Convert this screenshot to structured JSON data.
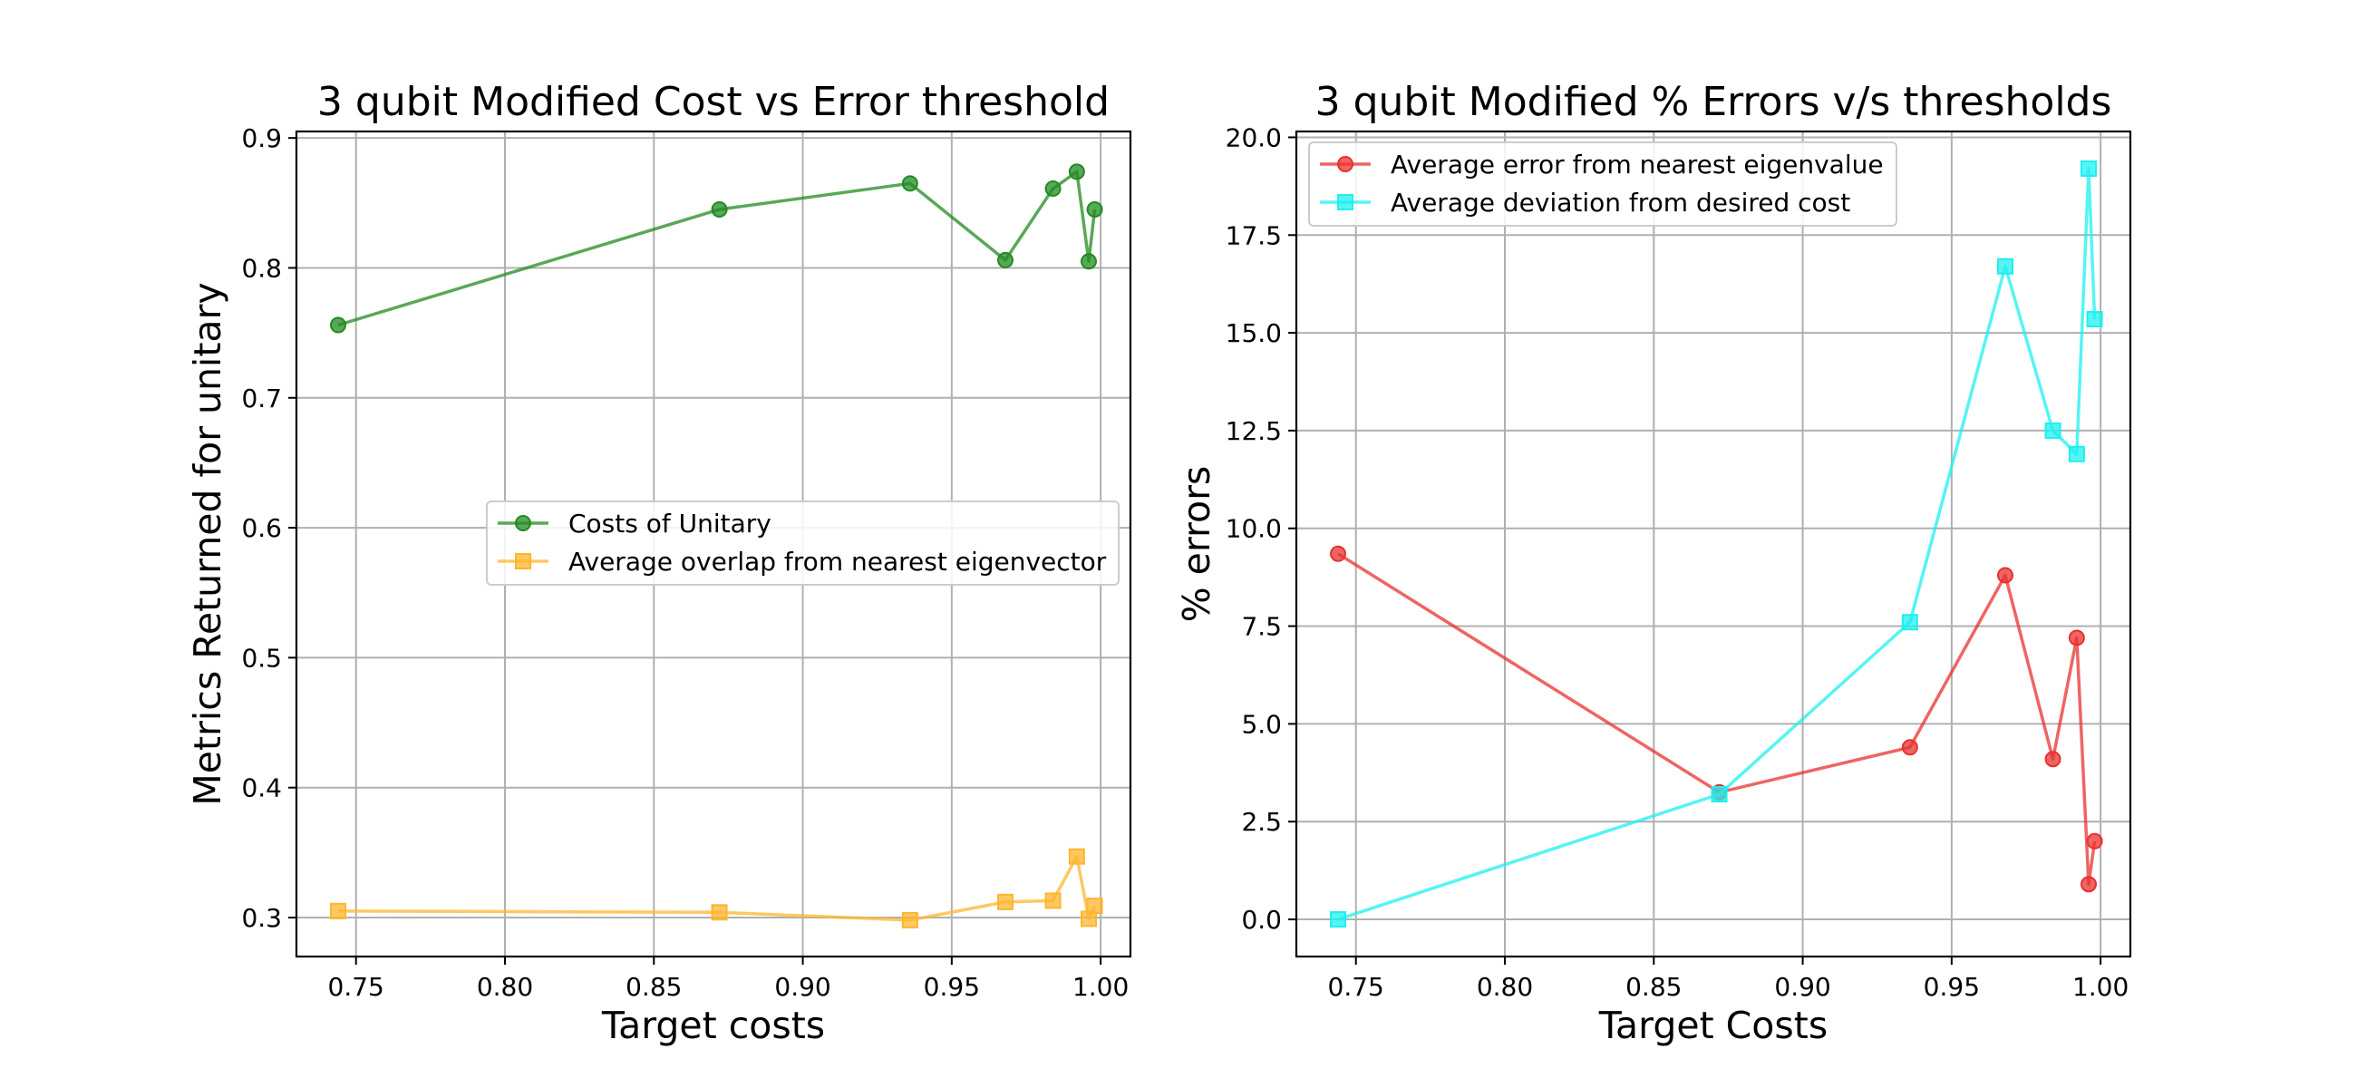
{
  "chart_data": [
    {
      "type": "line",
      "title": "3 qubit Modified Cost vs Error threshold",
      "xlabel": "Target costs",
      "ylabel": "Metrics Returned for unitary",
      "xlim": [
        0.73,
        1.01
      ],
      "ylim": [
        0.27,
        0.905
      ],
      "xticks": [
        0.75,
        0.8,
        0.85,
        0.9,
        0.95,
        1.0
      ],
      "xtick_labels": [
        "0.75",
        "0.80",
        "0.85",
        "0.90",
        "0.95",
        "1.00"
      ],
      "yticks": [
        0.3,
        0.4,
        0.5,
        0.6,
        0.7,
        0.8,
        0.9
      ],
      "ytick_labels": [
        "0.3",
        "0.4",
        "0.5",
        "0.6",
        "0.7",
        "0.8",
        "0.9"
      ],
      "grid": true,
      "legend_position": "center-right",
      "series": [
        {
          "name": "Costs of Unitary",
          "color": "#228B22",
          "marker": "circle",
          "x": [
            0.744,
            0.872,
            0.936,
            0.968,
            0.984,
            0.992,
            0.996,
            0.998
          ],
          "y": [
            0.756,
            0.845,
            0.865,
            0.806,
            0.861,
            0.874,
            0.805,
            0.845
          ]
        },
        {
          "name": "Average overlap from nearest eigenvector",
          "color": "#FFB52E",
          "marker": "square",
          "x": [
            0.744,
            0.872,
            0.936,
            0.968,
            0.984,
            0.992,
            0.996,
            0.998
          ],
          "y": [
            0.305,
            0.304,
            0.298,
            0.312,
            0.313,
            0.347,
            0.299,
            0.309
          ]
        }
      ]
    },
    {
      "type": "line",
      "title": "3 qubit Modified % Errors v/s thresholds",
      "xlabel": "Target Costs",
      "ylabel": "% errors",
      "xlim": [
        0.73,
        1.01
      ],
      "ylim": [
        -0.95,
        20.15
      ],
      "xticks": [
        0.75,
        0.8,
        0.85,
        0.9,
        0.95,
        1.0
      ],
      "xtick_labels": [
        "0.75",
        "0.80",
        "0.85",
        "0.90",
        "0.95",
        "1.00"
      ],
      "yticks": [
        0,
        2.5,
        5,
        7.5,
        10,
        12.5,
        15,
        17.5,
        20
      ],
      "ytick_labels": [
        "0.0",
        "2.5",
        "5.0",
        "7.5",
        "10.0",
        "12.5",
        "15.0",
        "17.5",
        "20.0"
      ],
      "grid": true,
      "legend_position": "top-left",
      "series": [
        {
          "name": "Average error from nearest eigenvalue",
          "color": "#E8312F",
          "marker": "circle",
          "x": [
            0.744,
            0.872,
            0.936,
            0.968,
            0.984,
            0.992,
            0.996,
            0.998
          ],
          "y": [
            9.35,
            3.25,
            4.4,
            8.8,
            4.1,
            7.2,
            0.9,
            2.0
          ]
        },
        {
          "name": "Average deviation from desired cost",
          "color": "#1EF0F0",
          "marker": "square",
          "x": [
            0.744,
            0.872,
            0.936,
            0.968,
            0.984,
            0.992,
            0.996,
            0.998
          ],
          "y": [
            0.0,
            3.2,
            7.6,
            16.7,
            12.5,
            11.9,
            19.2,
            15.35
          ]
        }
      ]
    }
  ]
}
